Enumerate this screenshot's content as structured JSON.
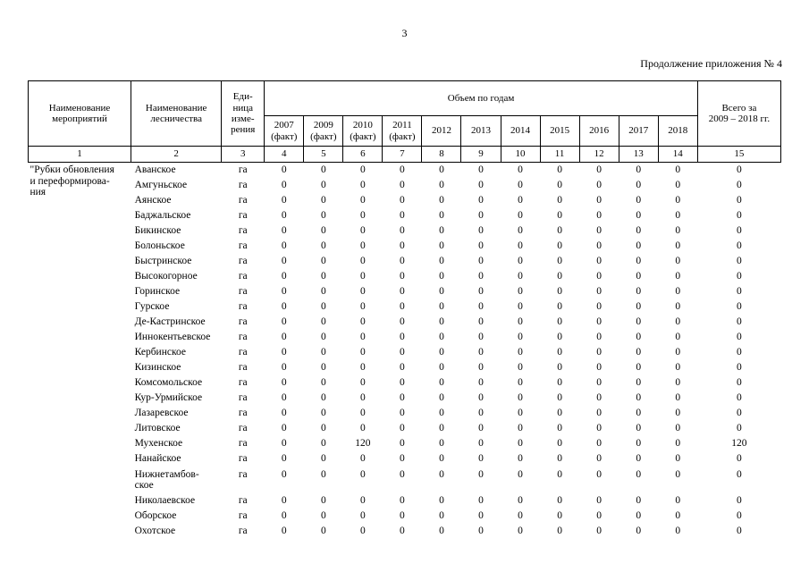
{
  "page": {
    "number": "3",
    "continuation_note": "Продолжение приложения № 4"
  },
  "table": {
    "headers": {
      "activities": "Наименование\nмероприятий",
      "forestry": "Наименование\nлесничества",
      "unit": "Еди-\nница\nизме-\nрения",
      "volume_group": "Объем по годам",
      "total": "Всего за\n2009 – 2018 гг.",
      "years": [
        "2007\n(факт)",
        "2009\n(факт)",
        "2010\n(факт)",
        "2011\n(факт)",
        "2012",
        "2013",
        "2014",
        "2015",
        "2016",
        "2017",
        "2018"
      ],
      "numbers": [
        "1",
        "2",
        "3",
        "4",
        "5",
        "6",
        "7",
        "8",
        "9",
        "10",
        "11",
        "12",
        "13",
        "14",
        "15"
      ]
    },
    "activity": "\"Рубки обновления\nи переформирова-\nния",
    "rows": [
      {
        "name": "Аванское",
        "unit": "га",
        "values": [
          0,
          0,
          0,
          0,
          0,
          0,
          0,
          0,
          0,
          0,
          0
        ],
        "total": 0
      },
      {
        "name": "Амгуньское",
        "unit": "га",
        "values": [
          0,
          0,
          0,
          0,
          0,
          0,
          0,
          0,
          0,
          0,
          0
        ],
        "total": 0
      },
      {
        "name": "Аянское",
        "unit": "га",
        "values": [
          0,
          0,
          0,
          0,
          0,
          0,
          0,
          0,
          0,
          0,
          0
        ],
        "total": 0
      },
      {
        "name": "Баджальское",
        "unit": "га",
        "values": [
          0,
          0,
          0,
          0,
          0,
          0,
          0,
          0,
          0,
          0,
          0
        ],
        "total": 0
      },
      {
        "name": "Бикинское",
        "unit": "га",
        "values": [
          0,
          0,
          0,
          0,
          0,
          0,
          0,
          0,
          0,
          0,
          0
        ],
        "total": 0
      },
      {
        "name": "Болоньское",
        "unit": "га",
        "values": [
          0,
          0,
          0,
          0,
          0,
          0,
          0,
          0,
          0,
          0,
          0
        ],
        "total": 0
      },
      {
        "name": "Быстринское",
        "unit": "га",
        "values": [
          0,
          0,
          0,
          0,
          0,
          0,
          0,
          0,
          0,
          0,
          0
        ],
        "total": 0
      },
      {
        "name": "Высокогорное",
        "unit": "га",
        "values": [
          0,
          0,
          0,
          0,
          0,
          0,
          0,
          0,
          0,
          0,
          0
        ],
        "total": 0
      },
      {
        "name": "Горинское",
        "unit": "га",
        "values": [
          0,
          0,
          0,
          0,
          0,
          0,
          0,
          0,
          0,
          0,
          0
        ],
        "total": 0
      },
      {
        "name": "Гурское",
        "unit": "га",
        "values": [
          0,
          0,
          0,
          0,
          0,
          0,
          0,
          0,
          0,
          0,
          0
        ],
        "total": 0
      },
      {
        "name": "Де-Кастринское",
        "unit": "га",
        "values": [
          0,
          0,
          0,
          0,
          0,
          0,
          0,
          0,
          0,
          0,
          0
        ],
        "total": 0
      },
      {
        "name": "Иннокентьевское",
        "unit": "га",
        "values": [
          0,
          0,
          0,
          0,
          0,
          0,
          0,
          0,
          0,
          0,
          0
        ],
        "total": 0
      },
      {
        "name": "Кербинское",
        "unit": "га",
        "values": [
          0,
          0,
          0,
          0,
          0,
          0,
          0,
          0,
          0,
          0,
          0
        ],
        "total": 0
      },
      {
        "name": "Кизинское",
        "unit": "га",
        "values": [
          0,
          0,
          0,
          0,
          0,
          0,
          0,
          0,
          0,
          0,
          0
        ],
        "total": 0
      },
      {
        "name": "Комсомольское",
        "unit": "га",
        "values": [
          0,
          0,
          0,
          0,
          0,
          0,
          0,
          0,
          0,
          0,
          0
        ],
        "total": 0
      },
      {
        "name": "Кур-Урмийское",
        "unit": "га",
        "values": [
          0,
          0,
          0,
          0,
          0,
          0,
          0,
          0,
          0,
          0,
          0
        ],
        "total": 0
      },
      {
        "name": "Лазаревское",
        "unit": "га",
        "values": [
          0,
          0,
          0,
          0,
          0,
          0,
          0,
          0,
          0,
          0,
          0
        ],
        "total": 0
      },
      {
        "name": "Литовское",
        "unit": "га",
        "values": [
          0,
          0,
          0,
          0,
          0,
          0,
          0,
          0,
          0,
          0,
          0
        ],
        "total": 0
      },
      {
        "name": "Мухенское",
        "unit": "га",
        "values": [
          0,
          0,
          120,
          0,
          0,
          0,
          0,
          0,
          0,
          0,
          0
        ],
        "total": 120
      },
      {
        "name": "Нанайское",
        "unit": "га",
        "values": [
          0,
          0,
          0,
          0,
          0,
          0,
          0,
          0,
          0,
          0,
          0
        ],
        "total": 0
      },
      {
        "name": "Нижнетамбов-\nское",
        "unit": "га",
        "values": [
          0,
          0,
          0,
          0,
          0,
          0,
          0,
          0,
          0,
          0,
          0
        ],
        "total": 0
      },
      {
        "name": "Николаевское",
        "unit": "га",
        "values": [
          0,
          0,
          0,
          0,
          0,
          0,
          0,
          0,
          0,
          0,
          0
        ],
        "total": 0
      },
      {
        "name": "Оборское",
        "unit": "га",
        "values": [
          0,
          0,
          0,
          0,
          0,
          0,
          0,
          0,
          0,
          0,
          0
        ],
        "total": 0
      },
      {
        "name": "Охотское",
        "unit": "га",
        "values": [
          0,
          0,
          0,
          0,
          0,
          0,
          0,
          0,
          0,
          0,
          0
        ],
        "total": 0
      }
    ]
  }
}
